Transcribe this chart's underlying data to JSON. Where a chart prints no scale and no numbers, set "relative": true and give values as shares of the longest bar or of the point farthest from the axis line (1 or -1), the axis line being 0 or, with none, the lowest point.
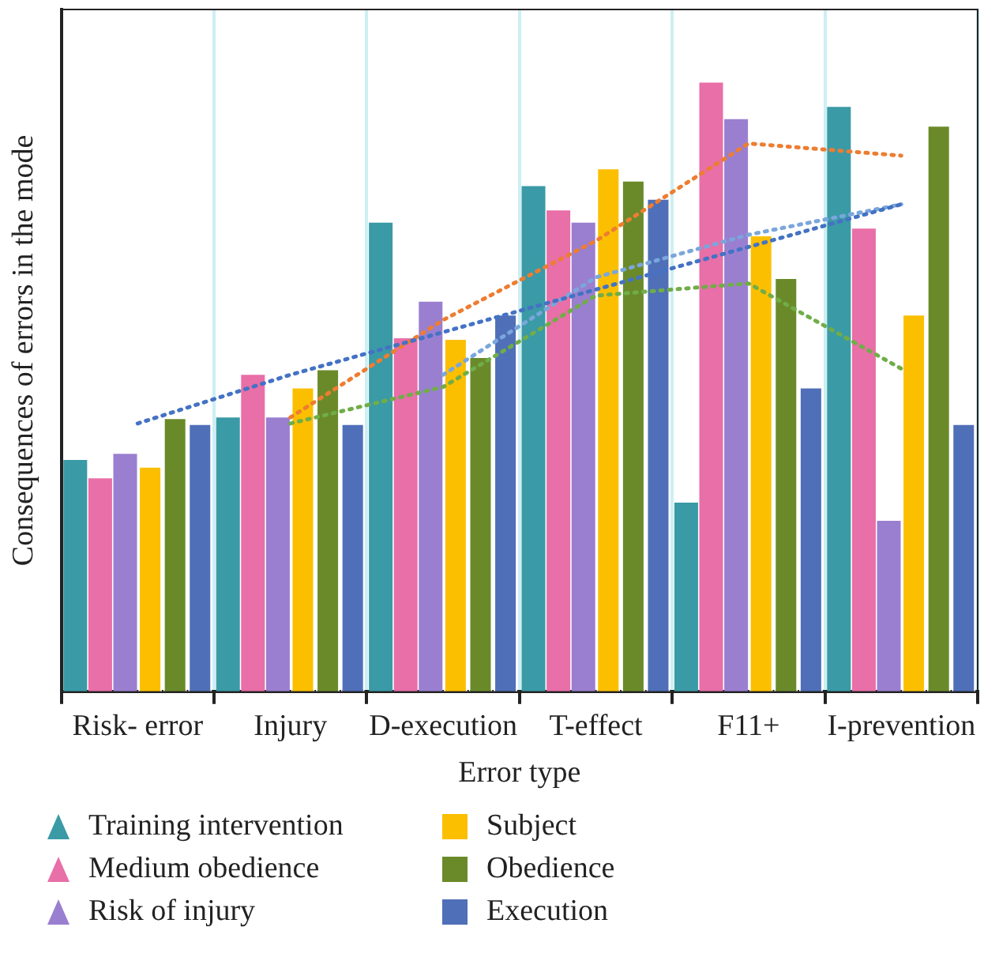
{
  "chart_data": {
    "type": "bar",
    "relative": true,
    "xlabel": "Error type",
    "ylabel": "Consequences of errors in the mode",
    "grid": "x",
    "legend": "bottom",
    "categories": [
      "Risk- error",
      "Injury",
      "D-execution",
      "T-effect",
      "F11+",
      "I-prevention"
    ],
    "series": [
      {
        "name": "Training intervention",
        "marker": "triangle",
        "color": "#3a9aa6",
        "values": [
          0.38,
          0.45,
          0.77,
          0.83,
          0.31,
          0.96
        ]
      },
      {
        "name": "Medium obedience",
        "marker": "triangle",
        "color": "#e86fa8",
        "values": [
          0.35,
          0.52,
          0.58,
          0.79,
          1.0,
          0.76
        ]
      },
      {
        "name": "Risk of injury",
        "marker": "triangle",
        "color": "#9a7fd0",
        "values": [
          0.39,
          0.45,
          0.64,
          0.77,
          0.94,
          0.28
        ]
      },
      {
        "name": "Subject",
        "color": "#fbbf00",
        "values": [
          0.37,
          0.5,
          0.58,
          0.86,
          0.75,
          0.62
        ]
      },
      {
        "name": "Obedience",
        "color": "#6a8a2a",
        "values": [
          0.45,
          0.53,
          0.55,
          0.84,
          0.68,
          0.93
        ]
      },
      {
        "name": "Execution",
        "color": "#4f6fb8",
        "values": [
          0.44,
          0.44,
          0.62,
          0.81,
          0.5,
          0.44
        ]
      },
      {
        "type": "line",
        "line_style": "dotted",
        "color": "#4472c4",
        "values": [
          0.44,
          0.52,
          0.59,
          0.66,
          0.73,
          0.8
        ]
      },
      {
        "type": "line",
        "line_style": "dotted",
        "color": "#ed7d31",
        "values": [
          null,
          0.45,
          0.61,
          0.74,
          0.9,
          0.88
        ]
      },
      {
        "type": "line",
        "line_style": "dotted",
        "color": "#70ad47",
        "values": [
          null,
          0.44,
          0.5,
          0.65,
          0.67,
          0.53
        ]
      },
      {
        "type": "line",
        "line_style": "dotted",
        "color": "#7aa6dc",
        "values": [
          null,
          null,
          0.52,
          0.68,
          0.75,
          0.8
        ]
      }
    ]
  }
}
